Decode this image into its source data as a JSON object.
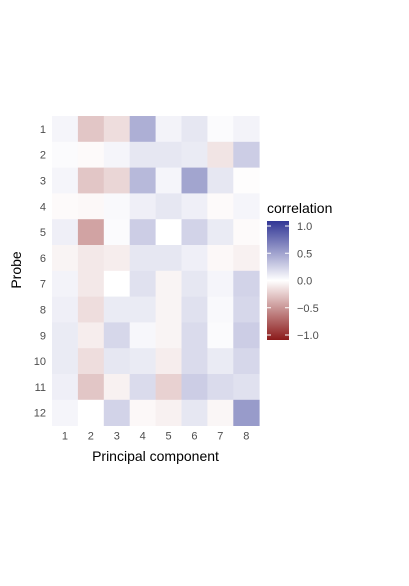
{
  "chart_data": {
    "type": "heatmap",
    "xlabel": "Principal component",
    "ylabel": "Probe",
    "x_categories": [
      "1",
      "2",
      "3",
      "4",
      "5",
      "6",
      "7",
      "8"
    ],
    "y_categories": [
      "1",
      "2",
      "3",
      "4",
      "5",
      "6",
      "7",
      "8",
      "9",
      "10",
      "11",
      "12"
    ],
    "values": [
      [
        0.05,
        -0.25,
        -0.15,
        0.4,
        0.06,
        0.12,
        0.02,
        0.06
      ],
      [
        0.02,
        -0.02,
        0.05,
        0.12,
        0.12,
        0.1,
        -0.12,
        0.25
      ],
      [
        0.05,
        -0.25,
        -0.18,
        0.35,
        0.05,
        0.45,
        0.12,
        -0.01
      ],
      [
        -0.02,
        -0.03,
        0.03,
        0.08,
        0.12,
        0.08,
        -0.02,
        0.05
      ],
      [
        0.08,
        -0.4,
        0.02,
        0.25,
        0.0,
        0.22,
        0.1,
        -0.02
      ],
      [
        -0.05,
        -0.1,
        -0.08,
        0.12,
        0.12,
        0.08,
        -0.03,
        -0.06
      ],
      [
        0.06,
        -0.1,
        0.0,
        0.15,
        -0.05,
        0.12,
        0.05,
        0.22
      ],
      [
        0.08,
        -0.15,
        0.1,
        0.1,
        -0.05,
        0.15,
        0.03,
        0.2
      ],
      [
        0.1,
        -0.08,
        0.2,
        0.04,
        -0.05,
        0.18,
        0.02,
        0.25
      ],
      [
        0.1,
        -0.15,
        0.12,
        0.1,
        -0.08,
        0.18,
        0.1,
        0.2
      ],
      [
        0.08,
        -0.25,
        -0.06,
        0.18,
        -0.2,
        0.25,
        0.18,
        0.15
      ],
      [
        0.05,
        0.0,
        0.22,
        -0.03,
        -0.06,
        0.12,
        -0.04,
        0.5
      ]
    ],
    "colorbar": {
      "title": "correlation",
      "range": [
        -1.0,
        1.0
      ],
      "ticks": [
        "1.0",
        "0.5",
        "0.0",
        "−0.5",
        "−1.0"
      ],
      "tick_values": [
        1.0,
        0.5,
        0.0,
        -0.5,
        -1.0
      ],
      "low_color": "#8b1a1a",
      "mid_color": "#ffffff",
      "high_color": "#313695"
    },
    "legend_position": "right",
    "grid": false
  }
}
